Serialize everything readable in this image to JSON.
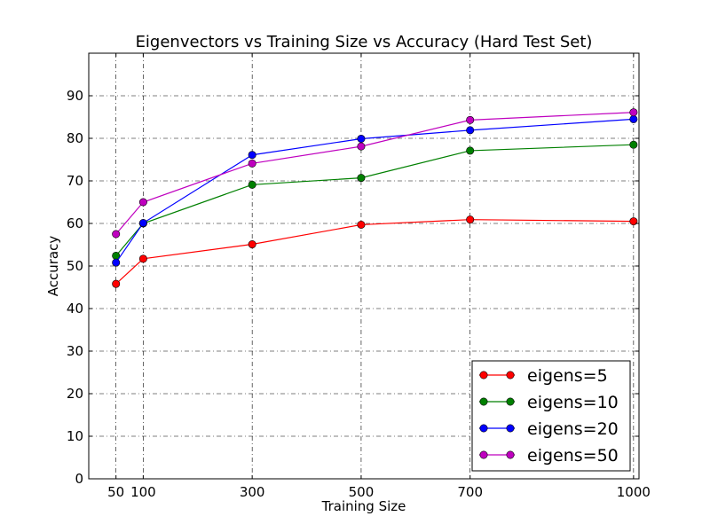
{
  "chart_data": {
    "type": "line",
    "title": "Eigenvectors vs Training Size vs Accuracy (Hard Test Set)",
    "xlabel": "Training Size",
    "ylabel": "Accuracy",
    "x": [
      50,
      100,
      300,
      500,
      700,
      1000
    ],
    "xticks": [
      "50",
      "100",
      "300",
      "500",
      "700",
      "1000"
    ],
    "yticks": [
      "0",
      "10",
      "20",
      "30",
      "40",
      "50",
      "60",
      "70",
      "80",
      "90"
    ],
    "xlim": [
      0,
      1010
    ],
    "ylim": [
      0,
      100
    ],
    "grid": true,
    "legend_position": "lower-right",
    "series": [
      {
        "name": "eigens=5",
        "color": "#ff0000",
        "values": [
          45.8,
          51.7,
          55.1,
          59.7,
          60.9,
          60.5
        ]
      },
      {
        "name": "eigens=10",
        "color": "#008000",
        "values": [
          52.4,
          60.0,
          69.1,
          70.7,
          77.1,
          78.5
        ]
      },
      {
        "name": "eigens=20",
        "color": "#0000ff",
        "values": [
          50.8,
          60.1,
          76.1,
          79.9,
          81.9,
          84.5
        ]
      },
      {
        "name": "eigens=50",
        "color": "#bf00bf",
        "values": [
          57.5,
          65.0,
          74.1,
          78.1,
          84.3,
          86.1
        ]
      }
    ]
  }
}
